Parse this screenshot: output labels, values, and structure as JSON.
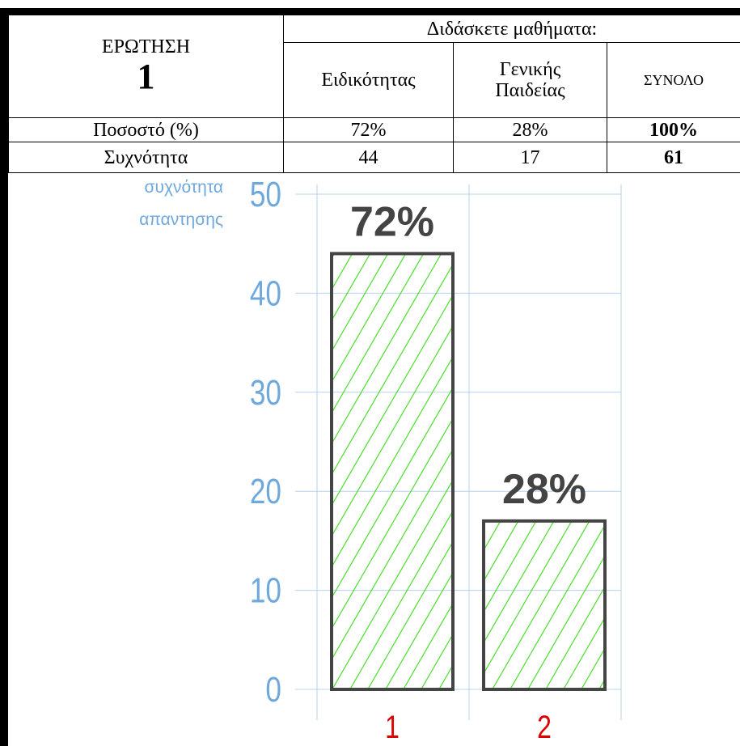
{
  "table": {
    "question_label": "ΕΡΩΤΗΣΗ",
    "question_number": "1",
    "group": "Διδάσκετε μαθήματα:",
    "columns": [
      "Ειδικότητας",
      "Γενικής Παιδείας",
      "ΣΥΝΟΛΟ"
    ],
    "rows": [
      [
        "Ποσοστό (%)",
        "72%",
        "28%",
        "100%"
      ],
      [
        "Συχνότητα",
        "44",
        "17",
        "61"
      ]
    ]
  },
  "chart_data": {
    "type": "bar",
    "ylabel": [
      "συχνότητα",
      "απαντησης"
    ],
    "categories": [
      "1",
      "2"
    ],
    "values": [
      44,
      17
    ],
    "value_labels": [
      "72%",
      "28%"
    ],
    "color": "#33dd11",
    "ylim": [
      0,
      50
    ],
    "yticks": [
      0,
      10,
      20,
      30,
      40,
      50
    ],
    "grid": true
  }
}
